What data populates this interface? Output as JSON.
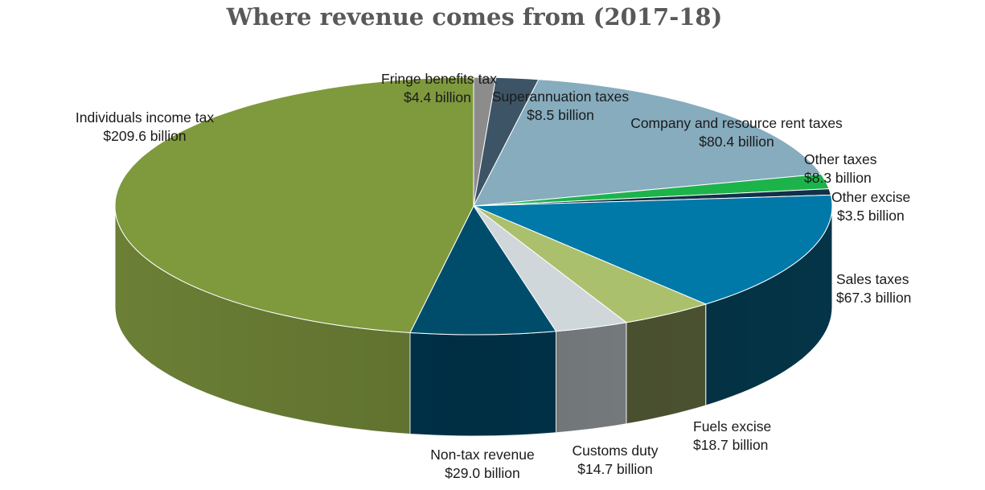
{
  "chart_data": {
    "type": "pie",
    "title": "Where revenue comes from (2017-18)",
    "unit": "$ billion",
    "slices": [
      {
        "name": "Fringe benefits tax",
        "value": 4.4,
        "value_label": "$4.4 billion",
        "color": "#8c8c8c",
        "side_color": "#6e6e6e"
      },
      {
        "name": "Superannuation taxes",
        "value": 8.5,
        "value_label": "$8.5 billion",
        "color": "#3d5466",
        "side_color": "#2b3c49"
      },
      {
        "name": "Company and resource rent taxes",
        "value": 80.4,
        "value_label": "$80.4 billion",
        "color": "#86acbe",
        "side_color": "#5f7e8c"
      },
      {
        "name": "Other taxes",
        "value": 8.3,
        "value_label": "$8.3 billion",
        "color": "#1db34b",
        "side_color": "#137a32"
      },
      {
        "name": "Other excise",
        "value": 3.5,
        "value_label": "$3.5 billion",
        "color": "#13304a",
        "side_color": "#0a1c2c"
      },
      {
        "name": "Sales taxes",
        "value": 67.3,
        "value_label": "$67.3 billion",
        "color": "#0078a8",
        "side_color": "#043447"
      },
      {
        "name": "Fuels excise",
        "value": 18.7,
        "value_label": "$18.7 billion",
        "color": "#abc06c",
        "side_color": "#4e5532"
      },
      {
        "name": "Customs duty",
        "value": 14.7,
        "value_label": "$14.7 billion",
        "color": "#d0d7da",
        "side_color": "#7d8285"
      },
      {
        "name": "Non-tax revenue",
        "value": 29.0,
        "value_label": "$29.0 billion",
        "color": "#004d6b",
        "side_color": "#00354d"
      },
      {
        "name": "Individuals income tax",
        "value": 209.6,
        "value_label": "$209.6 billion",
        "color": "#7f993d",
        "side_color": "#6b7f35"
      }
    ]
  }
}
